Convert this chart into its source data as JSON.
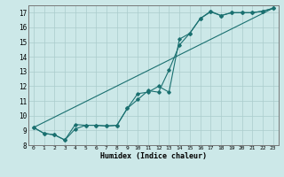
{
  "title": "",
  "xlabel": "Humidex (Indice chaleur)",
  "ylabel": "",
  "bg_color": "#cce8e8",
  "grid_color": "#aacccc",
  "line_color": "#1a7070",
  "xlim": [
    -0.5,
    23.5
  ],
  "ylim": [
    8.0,
    17.5
  ],
  "yticks": [
    8,
    9,
    10,
    11,
    12,
    13,
    14,
    15,
    16,
    17
  ],
  "xticks": [
    0,
    1,
    2,
    3,
    4,
    5,
    6,
    7,
    8,
    9,
    10,
    11,
    12,
    13,
    14,
    15,
    16,
    17,
    18,
    19,
    20,
    21,
    22,
    23
  ],
  "series1": {
    "x": [
      0,
      1,
      2,
      3,
      4,
      5,
      6,
      7,
      8,
      9,
      10,
      11,
      12,
      13,
      14,
      15,
      16,
      17,
      18,
      19,
      20,
      21,
      22,
      23
    ],
    "y": [
      9.2,
      8.8,
      8.7,
      8.35,
      9.4,
      9.35,
      9.35,
      9.3,
      9.35,
      10.5,
      11.1,
      11.7,
      11.6,
      13.1,
      14.8,
      15.6,
      16.6,
      17.05,
      16.8,
      17.0,
      17.0,
      17.0,
      17.1,
      17.3
    ]
  },
  "series2": {
    "x": [
      0,
      1,
      2,
      3,
      4,
      5,
      6,
      7,
      8,
      9,
      10,
      11,
      12,
      13,
      14,
      15,
      16,
      17,
      18,
      19,
      20,
      21,
      22,
      23
    ],
    "y": [
      9.2,
      8.8,
      8.7,
      8.35,
      9.1,
      9.35,
      9.35,
      9.3,
      9.35,
      10.5,
      11.5,
      11.6,
      12.0,
      11.6,
      15.2,
      15.6,
      16.6,
      17.1,
      16.8,
      17.0,
      17.0,
      17.0,
      17.1,
      17.3
    ]
  },
  "series3": {
    "x": [
      0,
      23
    ],
    "y": [
      9.2,
      17.3
    ]
  }
}
